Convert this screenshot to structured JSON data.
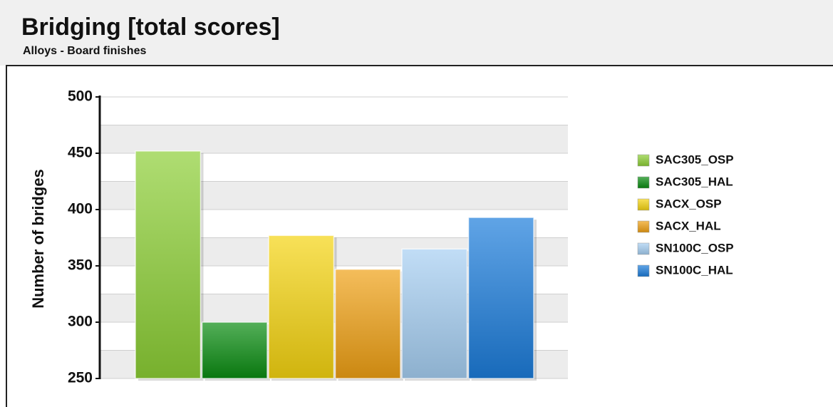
{
  "chart_data": {
    "type": "bar",
    "title": "Bridging [total scores]",
    "subtitle": "Alloys - Board finishes",
    "y_label": "Number of bridges",
    "ylim": [
      250,
      500
    ],
    "yticks": [
      250,
      300,
      350,
      400,
      450,
      500
    ],
    "grid": true,
    "legend": "right",
    "series": [
      {
        "name": "SAC305_OSP",
        "color": "#8ccf35",
        "values": [
          452
        ]
      },
      {
        "name": "SAC305_HAL",
        "color": "#0b8c12",
        "values": [
          300
        ]
      },
      {
        "name": "SACX_OSP",
        "color": "#f5d410",
        "values": [
          377
        ]
      },
      {
        "name": "SACX_HAL",
        "color": "#efa014",
        "values": [
          347
        ]
      },
      {
        "name": "SN100C_OSP",
        "color": "#a6cff2",
        "values": [
          365
        ]
      },
      {
        "name": "SN100C_HAL",
        "color": "#1c7ddb",
        "values": [
          393
        ]
      }
    ]
  }
}
